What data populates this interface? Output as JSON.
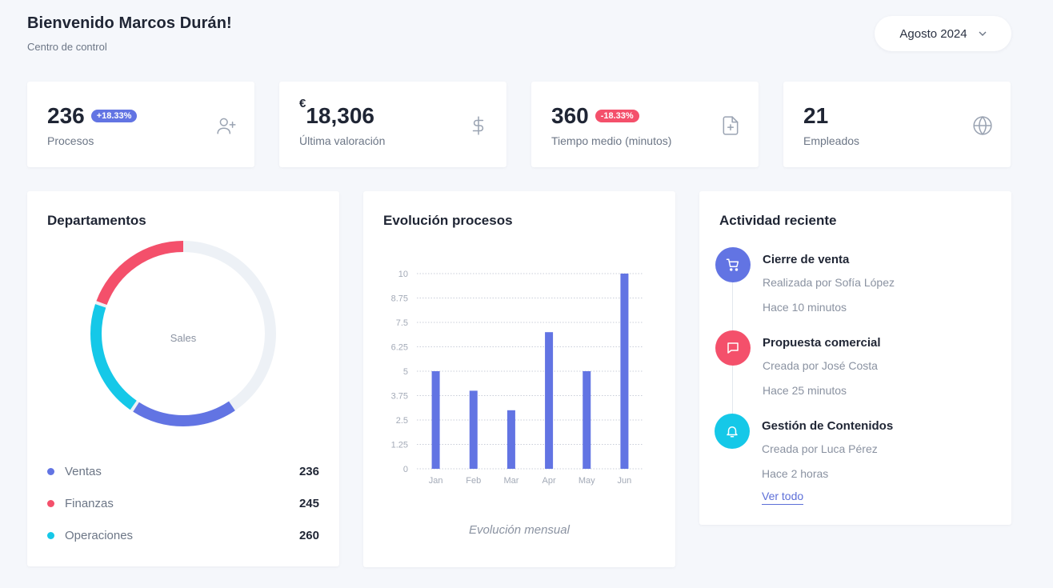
{
  "header": {
    "title": "Bienvenido Marcos Durán!",
    "subtitle": "Centro de control",
    "month_select": "Agosto 2024"
  },
  "stats": [
    {
      "value": "236",
      "badge": "+18.33%",
      "badge_type": "up",
      "label": "Procesos",
      "icon": "user-plus-icon"
    },
    {
      "currency": "€",
      "value": "18,306",
      "label": "Última valoración",
      "icon": "dollar-icon"
    },
    {
      "value": "360",
      "badge": "-18.33%",
      "badge_type": "down",
      "label": "Tiempo medio (minutos)",
      "icon": "file-plus-icon"
    },
    {
      "value": "21",
      "label": "Empleados",
      "icon": "globe-icon"
    }
  ],
  "departments": {
    "title": "Departamentos",
    "center_label": "Sales",
    "items": [
      {
        "name": "Ventas",
        "value": "236",
        "color": "#6274e3"
      },
      {
        "name": "Finanzas",
        "value": "245",
        "color": "#f4506b"
      },
      {
        "name": "Operaciones",
        "value": "260",
        "color": "#15c8e8"
      }
    ],
    "track_color": "#edf1f6"
  },
  "evolution": {
    "title": "Evolución procesos",
    "caption": "Evolución mensual"
  },
  "chart_data": {
    "type": "bar",
    "categories": [
      "Jan",
      "Feb",
      "Mar",
      "Apr",
      "May",
      "Jun"
    ],
    "values": [
      5,
      4,
      3,
      7,
      5,
      10
    ],
    "yticks": [
      "0",
      "1.25",
      "2.5",
      "3.75",
      "5",
      "6.25",
      "7.5",
      "8.75",
      "10"
    ],
    "ylim": [
      0,
      10
    ],
    "grid": true,
    "bar_color": "#6274e3"
  },
  "activity": {
    "title": "Actividad reciente",
    "items": [
      {
        "title": "Cierre de venta",
        "subtitle": "Realizada por Sofía López",
        "time": "Hace 10 minutos",
        "color": "#6274e3",
        "icon": "cart-icon"
      },
      {
        "title": "Propuesta comercial",
        "subtitle": "Creada por José Costa",
        "time": "Hace 25 minutos",
        "color": "#f4506b",
        "icon": "message-icon"
      },
      {
        "title": "Gestión de Contenidos",
        "subtitle": "Creada por Luca Pérez",
        "time": "Hace 2 horas",
        "color": "#15c8e8",
        "icon": "bell-icon"
      }
    ],
    "see_all": "Ver todo"
  }
}
